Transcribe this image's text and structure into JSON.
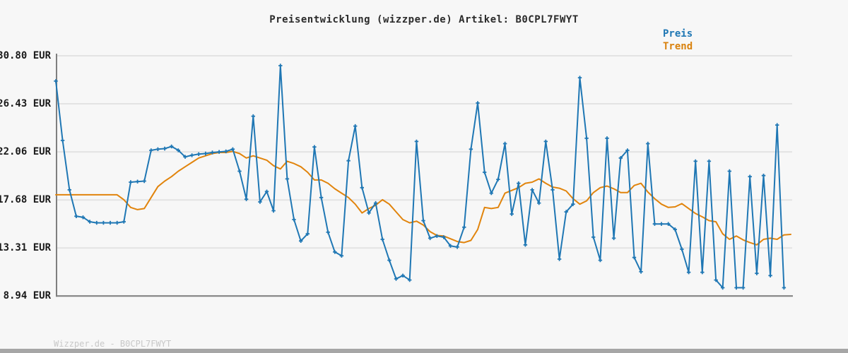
{
  "title": "Preisentwicklung (wizzper.de) Artikel: B0CPL7FWYT",
  "legend": {
    "preis_label": "Preis",
    "trend_label": "Trend"
  },
  "watermark": "Wizzper.de - B0CPL7FWYT",
  "colors": {
    "preis": "#1f77b4",
    "trend": "#e1840c",
    "background": "#f7f7f7",
    "grid": "#e3e3e3",
    "axis": "#7f7f7f",
    "title_text": "#2b2b2b",
    "tick_text": "#1a1a1a",
    "watermark_text": "#c8c8c8",
    "bottom_bar": "#a6a6a6"
  },
  "chart_data": {
    "type": "line",
    "title": "Preisentwicklung (wizzper.de) Artikel: B0CPL7FWYT",
    "xlabel": "",
    "ylabel": "",
    "ylim": [
      8.94,
      30.8
    ],
    "y_ticks": [
      30.8,
      26.43,
      22.06,
      17.68,
      13.31,
      8.94
    ],
    "y_tick_labels": [
      "30.80 EUR",
      "26.43 EUR",
      "22.06 EUR",
      "17.68 EUR",
      "13.31 EUR",
      "8.94 EUR"
    ],
    "grid": "horizontal",
    "legend_position": "top-right",
    "series": [
      {
        "name": "Trend",
        "color": "#e1840c",
        "marker": "none",
        "values": [
          18.15,
          18.15,
          18.15,
          18.15,
          18.15,
          18.15,
          18.15,
          18.15,
          18.15,
          18.15,
          17.7,
          17.0,
          16.8,
          16.9,
          17.9,
          18.9,
          19.4,
          19.8,
          20.3,
          20.7,
          21.1,
          21.5,
          21.7,
          21.9,
          22.0,
          22.0,
          22.1,
          21.9,
          21.5,
          21.7,
          21.5,
          21.3,
          20.8,
          20.5,
          21.2,
          21.0,
          20.7,
          20.2,
          19.5,
          19.5,
          19.2,
          18.7,
          18.3,
          17.9,
          17.3,
          16.5,
          16.9,
          17.2,
          17.7,
          17.3,
          16.6,
          15.9,
          15.6,
          15.75,
          15.4,
          14.8,
          14.45,
          14.4,
          14.15,
          13.9,
          13.8,
          14.0,
          15.0,
          17.0,
          16.9,
          17.0,
          18.3,
          18.55,
          18.8,
          19.2,
          19.3,
          19.6,
          19.2,
          18.85,
          18.75,
          18.5,
          17.8,
          17.3,
          17.6,
          18.35,
          18.8,
          18.95,
          18.7,
          18.35,
          18.35,
          19.0,
          19.2,
          18.4,
          17.8,
          17.3,
          17.0,
          17.05,
          17.35,
          16.9,
          16.45,
          16.15,
          15.8,
          15.7,
          14.6,
          14.1,
          14.4,
          14.05,
          13.8,
          13.6,
          14.1,
          14.2,
          14.1,
          14.5,
          14.55
        ]
      },
      {
        "name": "Preis",
        "color": "#1f77b4",
        "marker": "plus",
        "values": [
          28.5,
          23.1,
          18.6,
          16.2,
          16.1,
          15.7,
          15.6,
          15.6,
          15.6,
          15.6,
          15.7,
          19.3,
          19.35,
          19.4,
          22.2,
          22.3,
          22.35,
          22.55,
          22.2,
          21.6,
          21.75,
          21.85,
          21.9,
          22.0,
          22.05,
          22.1,
          22.3,
          20.3,
          17.75,
          25.3,
          17.5,
          18.45,
          16.7,
          29.9,
          19.6,
          15.9,
          13.95,
          14.6,
          22.5,
          17.9,
          14.75,
          12.95,
          12.6,
          21.25,
          24.4,
          18.8,
          16.5,
          17.4,
          14.1,
          12.2,
          10.5,
          10.8,
          10.4,
          23.0,
          15.8,
          14.2,
          14.4,
          14.3,
          13.5,
          13.4,
          15.2,
          22.3,
          26.5,
          20.2,
          18.3,
          19.55,
          22.8,
          16.4,
          19.2,
          13.6,
          18.6,
          17.4,
          23.0,
          18.6,
          12.3,
          16.6,
          17.3,
          28.8,
          23.3,
          14.3,
          12.2,
          23.3,
          14.2,
          21.5,
          22.2,
          12.45,
          11.15,
          22.8,
          15.5,
          15.5,
          15.5,
          15.0,
          13.2,
          11.1,
          21.2,
          11.1,
          21.2,
          10.4,
          9.7,
          20.3,
          9.7,
          9.7,
          19.8,
          11.0,
          19.9,
          10.8,
          24.5,
          9.7
        ]
      }
    ]
  }
}
